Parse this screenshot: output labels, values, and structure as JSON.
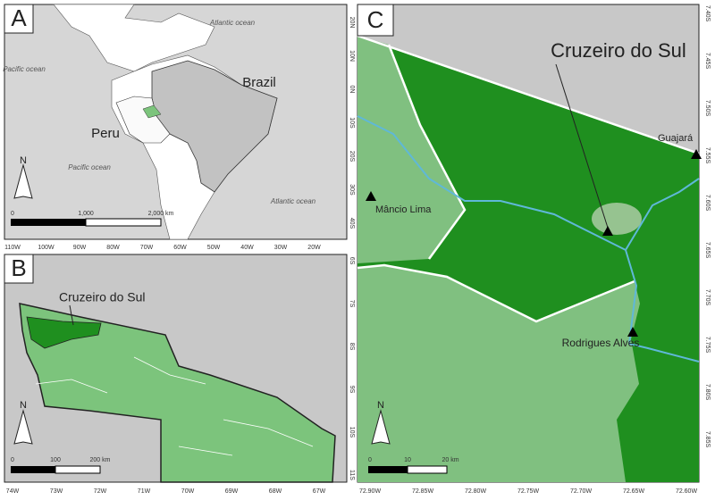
{
  "panels": [
    {
      "label": "A",
      "texts": [
        "Atlantic ocean",
        "Pacific ocean",
        "Brazil",
        "Peru",
        "Pacific ocean",
        "Atlantic ocean"
      ],
      "north": "N",
      "scale_bar": [
        "0",
        "1,000",
        "2,000 km"
      ],
      "x_axis": [
        "110W",
        "100W",
        "90W",
        "80W",
        "70W",
        "60W",
        "50W",
        "40W",
        "30W",
        "20W"
      ],
      "y_axis": [
        "20N",
        "10N",
        "0N",
        "10S",
        "20S",
        "30S",
        "40S"
      ]
    },
    {
      "label": "B",
      "texts": [
        "Cruzeiro do Sul"
      ],
      "north": "N",
      "scale_bar": [
        "0",
        "100",
        "200 km"
      ],
      "x_axis": [
        "74W",
        "73W",
        "72W",
        "71W",
        "70W",
        "69W",
        "68W",
        "67W"
      ],
      "y_axis": [
        "6S",
        "7S",
        "8S",
        "9S",
        "10S",
        "11S"
      ]
    },
    {
      "label": "C",
      "texts": [
        "Cruzeiro do Sul",
        "Guajará",
        "Mâncio Lima",
        "Rodrigues Alves"
      ],
      "north": "N",
      "scale_bar": [
        "0",
        "10",
        "20 km"
      ],
      "x_axis": [
        "72.90W",
        "72.85W",
        "72.80W",
        "72.75W",
        "72.70W",
        "72.65W",
        "72.60W"
      ],
      "y_axis": [
        "7.40S",
        "7.45S",
        "7.50S",
        "7.55S",
        "7.60S",
        "7.65S",
        "7.70S",
        "7.75S",
        "7.80S",
        "7.85S"
      ]
    }
  ]
}
